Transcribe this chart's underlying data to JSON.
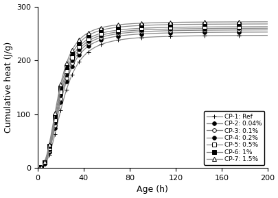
{
  "title": "",
  "xlabel": "Age (h)",
  "ylabel": "Cumulative heat (J/g)",
  "xlim": [
    0,
    200
  ],
  "ylim": [
    0,
    300
  ],
  "xticks": [
    0,
    40,
    80,
    120,
    160,
    200
  ],
  "yticks": [
    0,
    100,
    200,
    300
  ],
  "series": [
    {
      "label": "CP-1: Ref",
      "marker": "+",
      "markersize": 5,
      "markerfacecolor": "black",
      "markeredgecolor": "black",
      "color": "#888888",
      "linewidth": 0.9,
      "final_value": 247,
      "time_constant": 22.0,
      "n_exp": 2.8
    },
    {
      "label": "CP-2: 0.04%",
      "marker": "o",
      "markersize": 4,
      "markerfacecolor": "black",
      "markeredgecolor": "black",
      "color": "#888888",
      "linewidth": 0.9,
      "final_value": 253,
      "time_constant": 20.5,
      "n_exp": 2.8
    },
    {
      "label": "CP-3: 0.1%",
      "marker": "o",
      "markersize": 4,
      "markerfacecolor": "white",
      "markeredgecolor": "black",
      "color": "#888888",
      "linewidth": 0.9,
      "final_value": 257,
      "time_constant": 20.0,
      "n_exp": 2.8
    },
    {
      "label": "CP-4: 0.2%",
      "marker": "o",
      "markersize": 4,
      "markerfacecolor": "black",
      "markeredgecolor": "black",
      "color": "#888888",
      "linewidth": 0.9,
      "final_value": 260,
      "time_constant": 19.5,
      "n_exp": 2.8
    },
    {
      "label": "CP-5: 0.5%",
      "marker": "s",
      "markersize": 4,
      "markerfacecolor": "white",
      "markeredgecolor": "black",
      "color": "#888888",
      "linewidth": 0.9,
      "final_value": 263,
      "time_constant": 19.0,
      "n_exp": 2.8
    },
    {
      "label": "CP-6: 1%",
      "marker": "s",
      "markersize": 4,
      "markerfacecolor": "black",
      "markeredgecolor": "black",
      "color": "#888888",
      "linewidth": 0.9,
      "final_value": 268,
      "time_constant": 18.5,
      "n_exp": 2.8
    },
    {
      "label": "CP-7: 1.5%",
      "marker": "^",
      "markersize": 4,
      "markerfacecolor": "white",
      "markeredgecolor": "black",
      "color": "#888888",
      "linewidth": 0.9,
      "final_value": 272,
      "time_constant": 18.0,
      "n_exp": 2.8
    }
  ],
  "background_color": "white",
  "legend_loc": "lower right",
  "legend_fontsize": 6.5,
  "axis_fontsize": 9,
  "tick_fontsize": 8
}
